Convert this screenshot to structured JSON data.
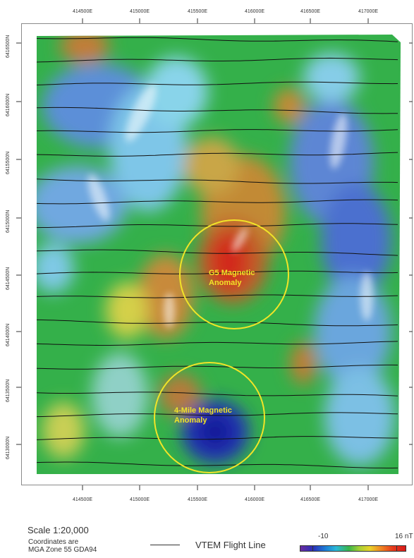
{
  "map": {
    "ticks_top": [
      "414500E",
      "415000E",
      "415500E",
      "416000E",
      "416500E",
      "417000E"
    ],
    "ticks_bottom": [
      "414500E",
      "415000E",
      "415500E",
      "416000E",
      "416500E",
      "417000E"
    ],
    "ticks_left": [
      "6416500N",
      "6416000N",
      "6415500N",
      "6415000N",
      "6414500N",
      "6414000N",
      "6413500N",
      "6413000N"
    ],
    "anomalies": [
      {
        "label_line1": "G5 Magnetic",
        "label_line2": "Anomaly"
      },
      {
        "label_line1": "4-Mile Magnetic",
        "label_line2": "Anomaly"
      }
    ],
    "circle_color": "#f1e428",
    "label_color": "#f1e428",
    "flight_line_color": "#111111"
  },
  "legend": {
    "scale": "Scale 1:20,000",
    "coords_line1": "Coordinates are",
    "coords_line2": "MGA Zone 55 GDA94",
    "flight_line_label": "VTEM Flight Line",
    "colorbar_min": "-10",
    "colorbar_max": "16 nT",
    "colorbar_colors": [
      "#6a2c9f",
      "#2b2fb8",
      "#1d7fd6",
      "#2bb8d8",
      "#39b54a",
      "#a6cf34",
      "#e9d32a",
      "#f08a24",
      "#e63a1c",
      "#d81a1a"
    ]
  }
}
